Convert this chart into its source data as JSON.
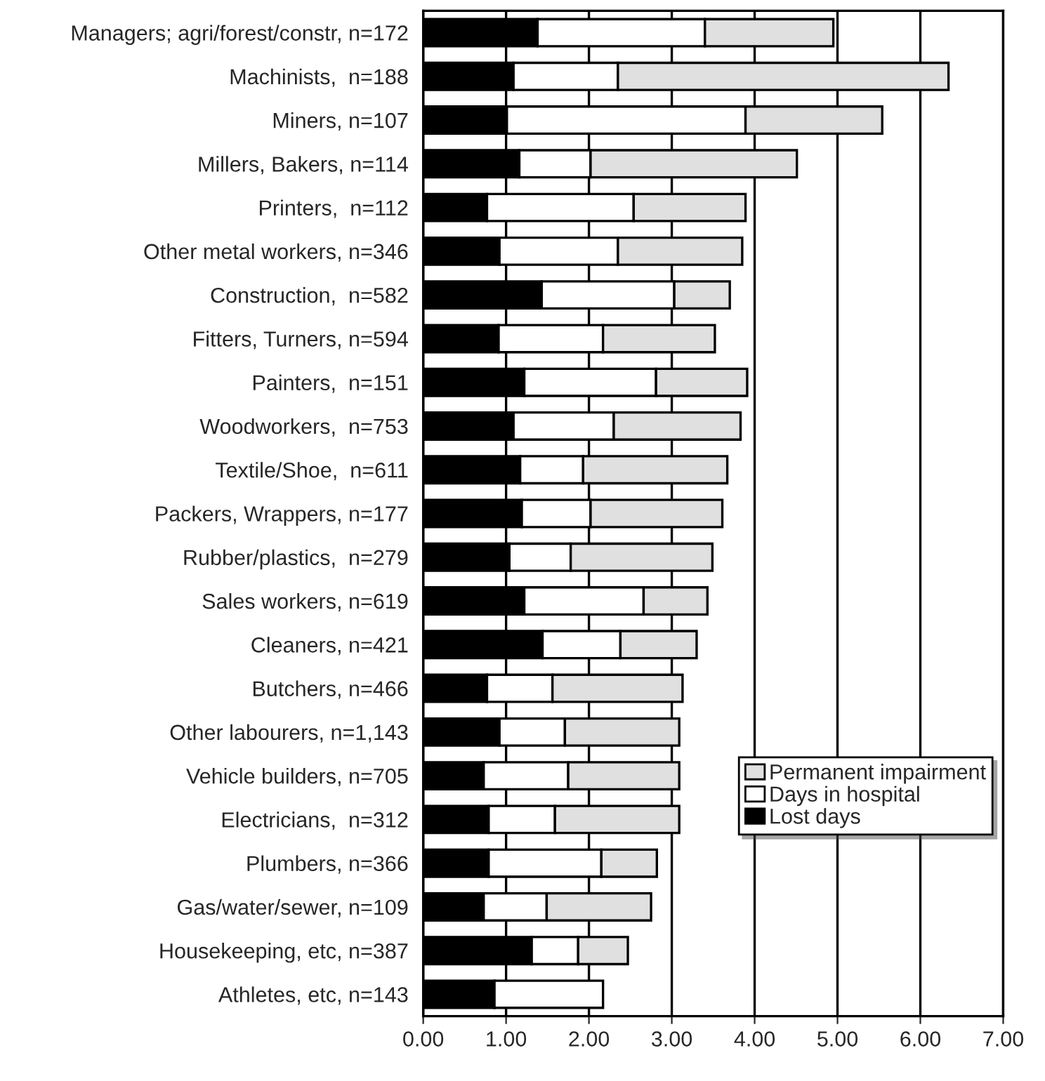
{
  "chart_data": {
    "type": "bar",
    "orientation": "horizontal",
    "stacked": true,
    "categories": [
      "Managers; agri/forest/constr, n=172",
      "Machinists,  n=188",
      "Miners, n=107",
      "Millers, Bakers, n=114",
      "Printers,  n=112",
      "Other metal workers, n=346",
      "Construction,  n=582",
      "Fitters, Turners, n=594",
      "Painters,  n=151",
      "Woodworkers,  n=753",
      "Textile/Shoe,  n=611",
      "Packers, Wrappers, n=177",
      "Rubber/plastics,  n=279",
      "Sales workers, n=619",
      "Cleaners, n=421",
      "Butchers, n=466",
      "Other labourers, n=1,143",
      "Vehicle builders, n=705",
      "Electricians,  n=312",
      "Plumbers, n=366",
      "Gas/water/sewer, n=109",
      "Housekeeping, etc, n=387",
      "Athletes, etc, n=143"
    ],
    "series": [
      {
        "name": "Lost days",
        "color": "#000000",
        "values": [
          1.38,
          1.09,
          1.01,
          1.16,
          0.77,
          0.92,
          1.43,
          0.91,
          1.22,
          1.09,
          1.17,
          1.19,
          1.04,
          1.22,
          1.44,
          0.77,
          0.92,
          0.73,
          0.79,
          0.79,
          0.73,
          1.31,
          0.86
        ]
      },
      {
        "name": "Days in hospital",
        "color": "#ffffff",
        "values": [
          2.02,
          1.26,
          2.88,
          0.86,
          1.77,
          1.43,
          1.6,
          1.26,
          1.59,
          1.21,
          0.76,
          0.83,
          0.74,
          1.44,
          0.94,
          0.79,
          0.79,
          1.02,
          0.8,
          1.36,
          0.76,
          0.56,
          1.31
        ]
      },
      {
        "name": "Permanent impairment",
        "color": "#e0e0e0",
        "values": [
          1.55,
          3.99,
          1.65,
          2.49,
          1.35,
          1.5,
          0.67,
          1.35,
          1.1,
          1.53,
          1.74,
          1.59,
          1.71,
          0.77,
          0.92,
          1.57,
          1.38,
          1.34,
          1.5,
          0.67,
          1.26,
          0.6,
          null
        ]
      }
    ],
    "xlim": [
      0,
      7
    ],
    "xticks": [
      {
        "value": 0,
        "label": "0.00"
      },
      {
        "value": 1,
        "label": "1.00"
      },
      {
        "value": 2,
        "label": "2.00"
      },
      {
        "value": 3,
        "label": "3.00"
      },
      {
        "value": 4,
        "label": "4.00"
      },
      {
        "value": 5,
        "label": "5.00"
      },
      {
        "value": 6,
        "label": "6.00"
      },
      {
        "value": 7,
        "label": "7.00"
      }
    ],
    "grid": "x",
    "legend": "bottom right"
  }
}
